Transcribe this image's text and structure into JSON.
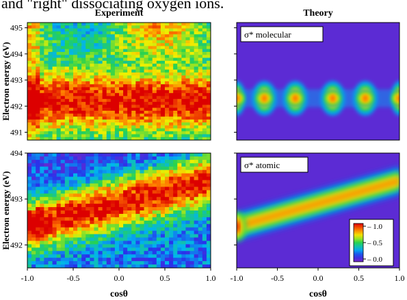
{
  "header_fragment": "and \"right\" dissociating oxygen ions.",
  "chart_data": [
    {
      "type": "heatmap",
      "title": "Experiment",
      "ylabel": "Electron energy (eV)",
      "xlabel": "",
      "xlim": [
        -1.0,
        1.0
      ],
      "ylim": [
        490.7,
        495.2
      ],
      "yticks": [
        "491",
        "492",
        "493",
        "494",
        "495"
      ],
      "colormap": "rainbow",
      "band": {
        "center_ev": 492.2,
        "width_ev": 0.5,
        "slope_ev_per_unit": 0.0
      }
    },
    {
      "type": "heatmap",
      "title": "Theory",
      "annotation": "σ* molecular",
      "xlim": [
        -1.0,
        1.0
      ],
      "ylim": [
        490.7,
        495.2
      ],
      "colormap": "rainbow",
      "band": {
        "center_ev": 492.3,
        "width_ev": 0.35,
        "blob_x": [
          -1.0,
          -0.66,
          -0.28,
          0.18,
          0.58,
          1.0
        ]
      }
    },
    {
      "type": "heatmap",
      "title": "",
      "ylabel": "Electron energy (eV)",
      "xlabel": "cosθ",
      "xlim": [
        -1.0,
        1.0
      ],
      "ylim": [
        491.5,
        494.0
      ],
      "xticks": [
        "-1.0",
        "-0.5",
        "0.0",
        "0.5",
        "1.0"
      ],
      "yticks": [
        "492",
        "493",
        "494"
      ],
      "colormap": "rainbow",
      "band": {
        "center_at_x": [
          [
            -1.0,
            492.4
          ],
          [
            1.0,
            493.4
          ]
        ],
        "width_ev": 0.3
      }
    },
    {
      "type": "heatmap",
      "title": "",
      "annotation": "σ* atomic",
      "xlabel": "cosθ",
      "xlim": [
        -1.0,
        1.0
      ],
      "ylim": [
        491.5,
        494.0
      ],
      "xticks": [
        "-1.0",
        "-0.5",
        "0.0",
        "0.5",
        "1.0"
      ],
      "colormap": "rainbow",
      "colorbar": {
        "ticks": [
          "1.0",
          "0.5",
          "0.0"
        ],
        "range": [
          0.0,
          1.0
        ]
      },
      "band": {
        "center_at_x": [
          [
            -1.0,
            492.4
          ],
          [
            1.0,
            493.4
          ]
        ],
        "width_ev": 0.3
      }
    }
  ]
}
